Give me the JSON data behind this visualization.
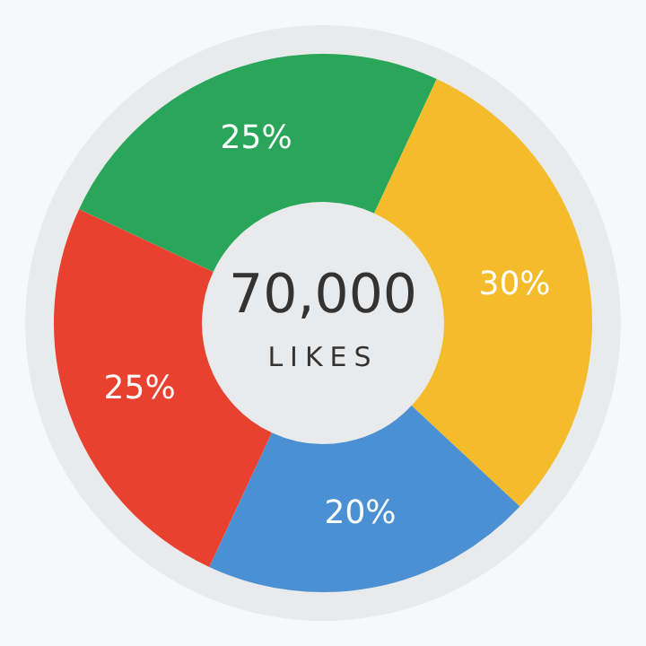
{
  "chart_data": {
    "type": "donut",
    "categories": [
      null,
      null,
      null,
      null
    ],
    "values": [
      25,
      30,
      20,
      25
    ],
    "colors": [
      "#2aa65a",
      "#f4bc2a",
      "#4a90d2",
      "#e8412f"
    ],
    "value_labels": [
      "25%",
      "30%",
      "20%",
      "25%"
    ],
    "annotations": [
      "70,000",
      "LIKES"
    ],
    "legend": false
  }
}
